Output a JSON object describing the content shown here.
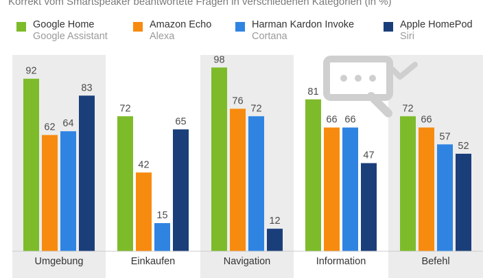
{
  "chart_data": {
    "type": "bar",
    "title": "Korrekt vom Smartspeaker beantwortete Fragen in verschiedenen Kategorien (in %)",
    "categories": [
      "Umgebung",
      "Einkaufen",
      "Navigation",
      "Information",
      "Befehl"
    ],
    "series": [
      {
        "name": "Google Home",
        "sub": "Google Assistant",
        "color": "#7dbb2a",
        "values": [
          92,
          72,
          98,
          81,
          72
        ]
      },
      {
        "name": "Amazon Echo",
        "sub": "Alexa",
        "color": "#f78b0f",
        "values": [
          62,
          42,
          76,
          66,
          66
        ]
      },
      {
        "name": "Harman Kardon Invoke",
        "sub": "Cortana",
        "color": "#2f84e2",
        "values": [
          64,
          15,
          72,
          66,
          57
        ]
      },
      {
        "name": "Apple HomePod",
        "sub": "Siri",
        "color": "#1a3e7a",
        "values": [
          83,
          65,
          12,
          47,
          52
        ]
      }
    ],
    "ylim": [
      0,
      100
    ],
    "xlabel": "",
    "ylabel": ""
  },
  "colors": {
    "band": "#ececec",
    "watermark": "#cfcfcf",
    "baseline": "#cccccc"
  },
  "icons": [
    "chat-bubble-icon",
    "checkmark-icon"
  ]
}
